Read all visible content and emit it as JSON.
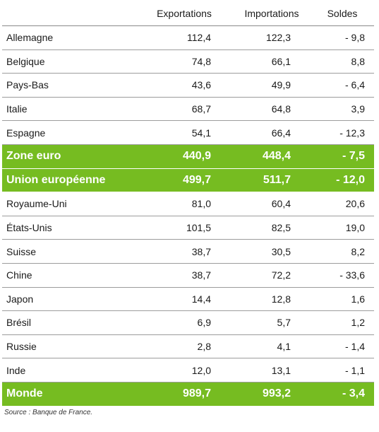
{
  "table": {
    "headers": {
      "exportations": "Exportations",
      "importations": "Importations",
      "soldes": "Soldes"
    },
    "rows": [
      {
        "pays": "Allemagne",
        "exportations": "112,4",
        "importations": "122,3",
        "soldes": "- 9,8",
        "highlight": false
      },
      {
        "pays": "Belgique",
        "exportations": "74,8",
        "importations": "66,1",
        "soldes": "8,8",
        "highlight": false
      },
      {
        "pays": "Pays-Bas",
        "exportations": "43,6",
        "importations": "49,9",
        "soldes": "- 6,4",
        "highlight": false
      },
      {
        "pays": "Italie",
        "exportations": "68,7",
        "importations": "64,8",
        "soldes": "3,9",
        "highlight": false
      },
      {
        "pays": "Espagne",
        "exportations": "54,1",
        "importations": "66,4",
        "soldes": "- 12,3",
        "highlight": false
      },
      {
        "pays": "Zone euro",
        "exportations": "440,9",
        "importations": "448,4",
        "soldes": "- 7,5",
        "highlight": true
      },
      {
        "pays": "Union européenne",
        "exportations": "499,7",
        "importations": "511,7",
        "soldes": "- 12,0",
        "highlight": true
      },
      {
        "pays": "Royaume-Uni",
        "exportations": "81,0",
        "importations": "60,4",
        "soldes": "20,6",
        "highlight": false
      },
      {
        "pays": "États-Unis",
        "exportations": "101,5",
        "importations": "82,5",
        "soldes": "19,0",
        "highlight": false
      },
      {
        "pays": "Suisse",
        "exportations": "38,7",
        "importations": "30,5",
        "soldes": "8,2",
        "highlight": false
      },
      {
        "pays": "Chine",
        "exportations": "38,7",
        "importations": "72,2",
        "soldes": "- 33,6",
        "highlight": false
      },
      {
        "pays": "Japon",
        "exportations": "14,4",
        "importations": "12,8",
        "soldes": "1,6",
        "highlight": false
      },
      {
        "pays": "Brésil",
        "exportations": "6,9",
        "importations": "5,7",
        "soldes": "1,2",
        "highlight": false
      },
      {
        "pays": "Russie",
        "exportations": "2,8",
        "importations": "4,1",
        "soldes": "- 1,4",
        "highlight": false
      },
      {
        "pays": "Inde",
        "exportations": "12,0",
        "importations": "13,1",
        "soldes": "- 1,1",
        "highlight": false
      },
      {
        "pays": "Monde",
        "exportations": "989,7",
        "importations": "993,2",
        "soldes": "- 3,4",
        "highlight": true
      }
    ]
  },
  "source": "Source : Banque de France.",
  "colors": {
    "highlight": "#76bc21",
    "rule": "#9c9c9c"
  }
}
